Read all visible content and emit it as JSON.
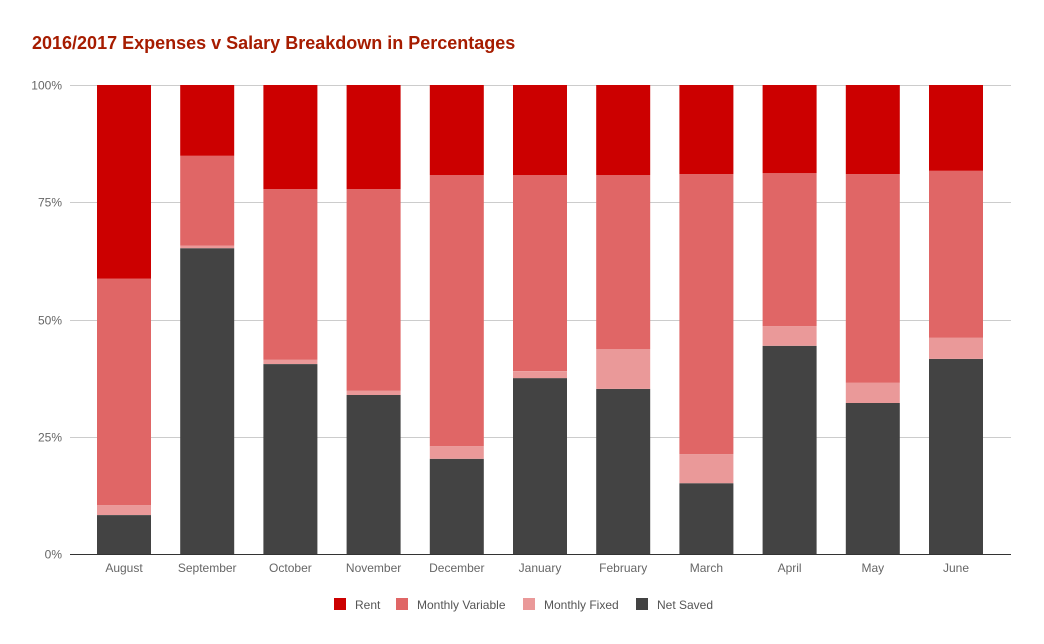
{
  "chart_data": {
    "type": "bar",
    "stacked": true,
    "normalized": true,
    "title": "2016/2017 Expenses v Salary Breakdown in Percentages",
    "xlabel": "",
    "ylabel": "",
    "ylim": [
      0,
      100
    ],
    "yticks": [
      0,
      25,
      50,
      75,
      100
    ],
    "ytick_labels": [
      "0%",
      "25%",
      "50%",
      "75%",
      "100%"
    ],
    "grid": true,
    "legend_position": "bottom",
    "categories": [
      "August",
      "September",
      "October",
      "November",
      "December",
      "January",
      "February",
      "March",
      "April",
      "May",
      "June"
    ],
    "series": [
      {
        "name": "Net Saved",
        "color": "#434343",
        "values": [
          8.3,
          65.2,
          40.5,
          33.9,
          20.3,
          37.5,
          35.2,
          15.1,
          44.4,
          32.2,
          41.6
        ]
      },
      {
        "name": "Monthly Fixed",
        "color": "#ea9999",
        "values": [
          2.1,
          0.5,
          0.9,
          0.9,
          2.7,
          1.5,
          8.5,
          6.2,
          4.2,
          4.3,
          4.5
        ]
      },
      {
        "name": "Monthly Variable",
        "color": "#e06666",
        "values": [
          48.3,
          19.2,
          36.4,
          43.0,
          57.8,
          41.8,
          37.1,
          59.7,
          32.6,
          44.5,
          35.6
        ]
      },
      {
        "name": "Rent",
        "color": "#cc0000",
        "values": [
          41.3,
          15.1,
          22.2,
          22.2,
          19.2,
          19.2,
          19.2,
          19.0,
          18.8,
          19.0,
          18.3
        ]
      }
    ],
    "legend_order": [
      "Rent",
      "Monthly Variable",
      "Monthly Fixed",
      "Net Saved"
    ]
  }
}
